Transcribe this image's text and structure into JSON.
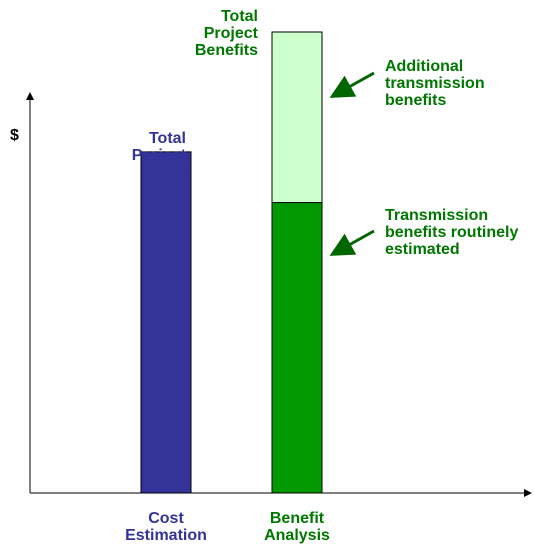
{
  "chart_data": {
    "type": "bar",
    "stacked": true,
    "y_label": "$",
    "annotation": "Total Project Benefits",
    "categories": [
      "Cost Estimation",
      "Benefit Analysis"
    ],
    "series": [
      {
        "name": "Total Project Cost",
        "color": "#333399",
        "values": [
          74,
          null
        ]
      },
      {
        "name": "Transmission benefits routinely estimated",
        "color": "#009900",
        "values": [
          null,
          63
        ]
      },
      {
        "name": "Additional transmission benefits",
        "color": "#ccffcc",
        "values": [
          null,
          37
        ]
      }
    ],
    "ylim": [
      0,
      100
    ]
  }
}
